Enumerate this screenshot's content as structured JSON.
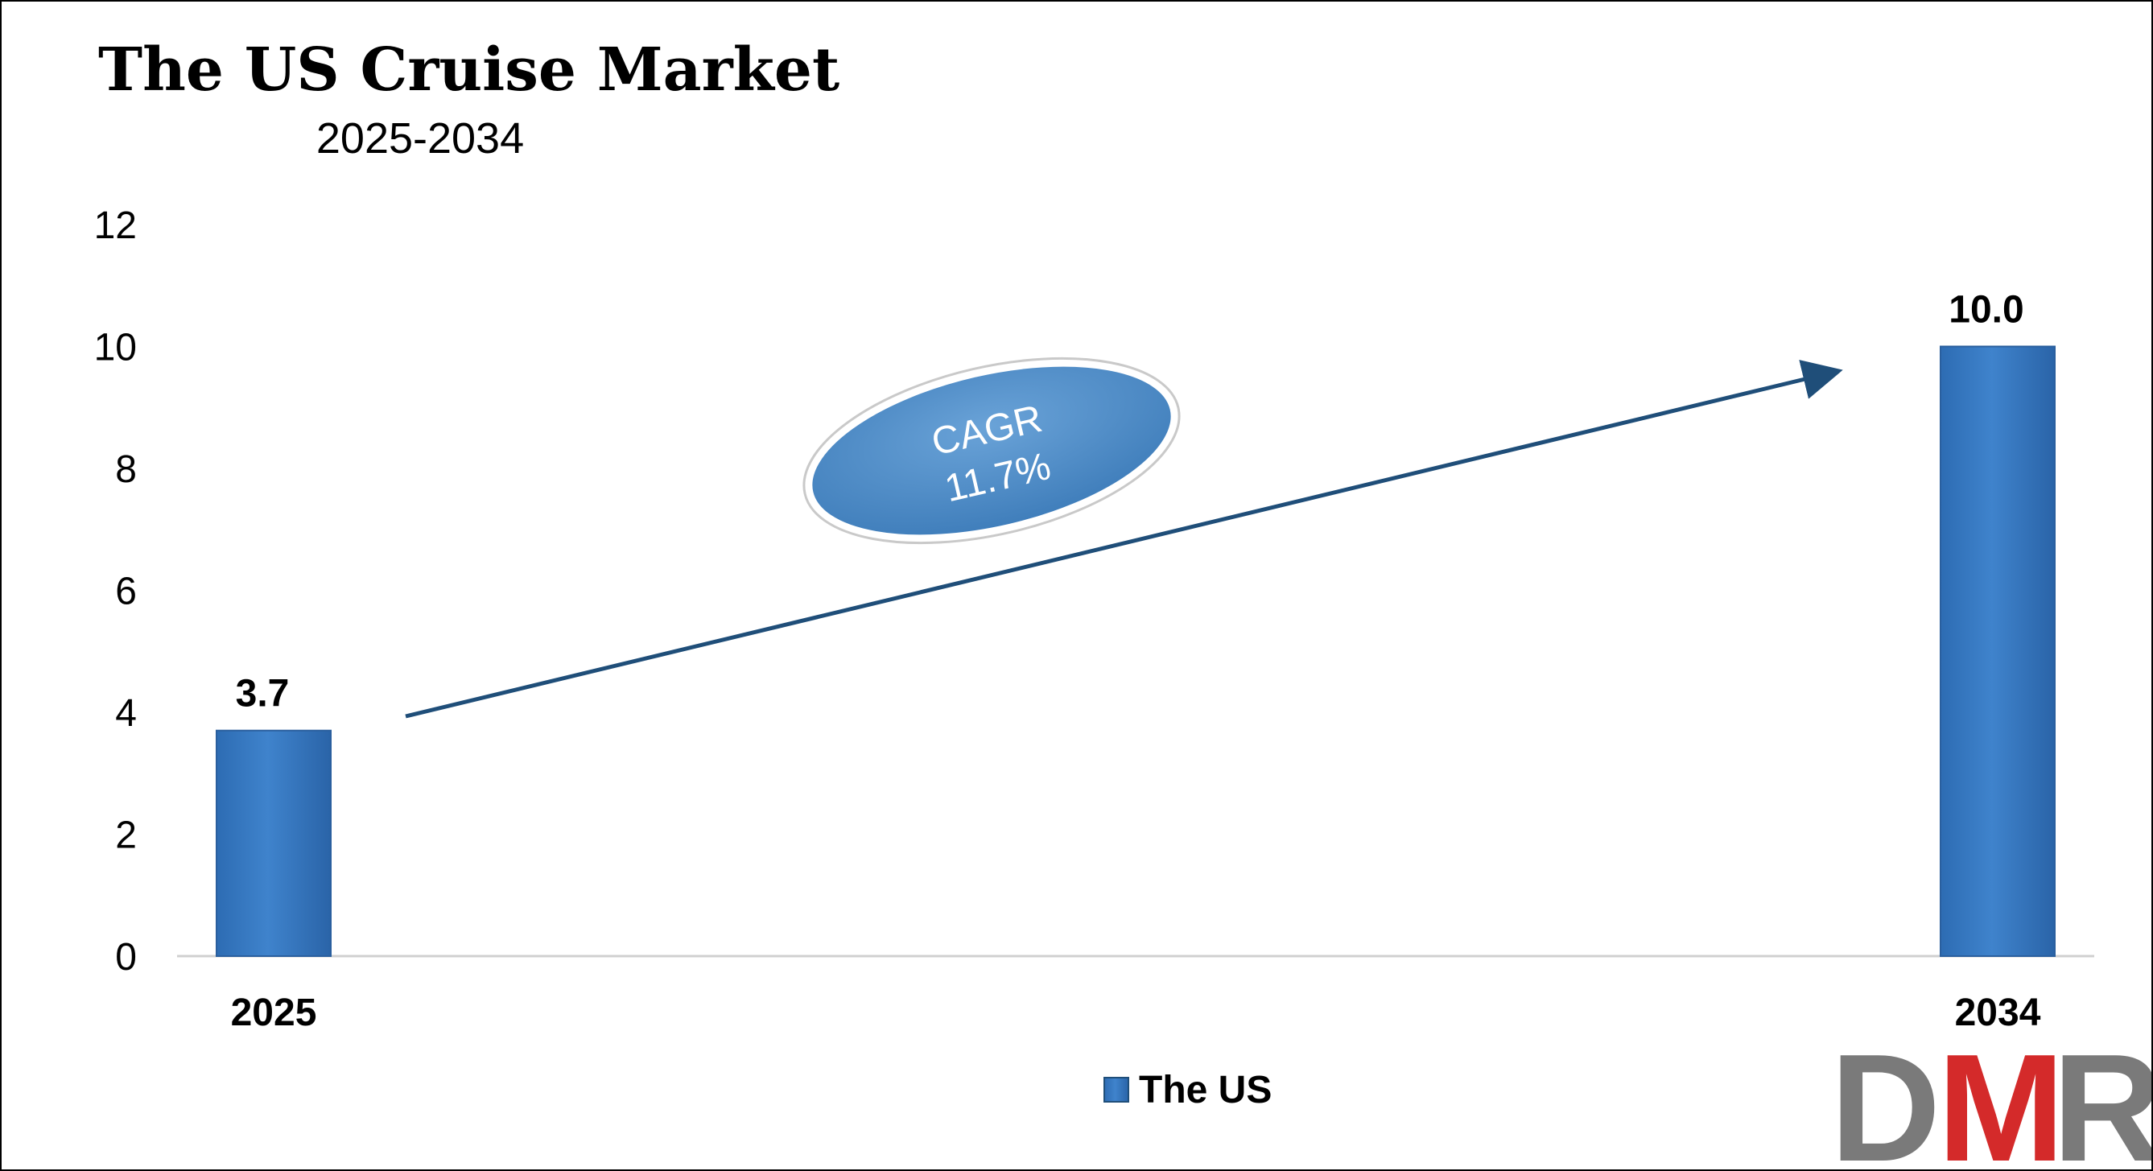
{
  "chart_data": {
    "type": "bar",
    "title": "The US Cruise Market",
    "subtitle": "2025-2034",
    "categories": [
      "2025",
      "2034"
    ],
    "series": [
      {
        "name": "The US",
        "values": [
          3.7,
          10.0
        ],
        "labels": [
          "3.7",
          "10.0"
        ],
        "color": "#3a7cc4"
      }
    ],
    "yticks": [
      "0",
      "2",
      "4",
      "6",
      "8",
      "10",
      "12"
    ],
    "ylim": [
      0,
      12
    ],
    "grid": false,
    "legend": "bottom-center",
    "annotation": {
      "line1": "CAGR",
      "line2": "11.7%"
    }
  },
  "logo": {
    "letters": [
      "D",
      "M",
      "R"
    ],
    "colors": [
      "#7a7a7a",
      "#d42a2a",
      "#7a7a7a"
    ]
  }
}
